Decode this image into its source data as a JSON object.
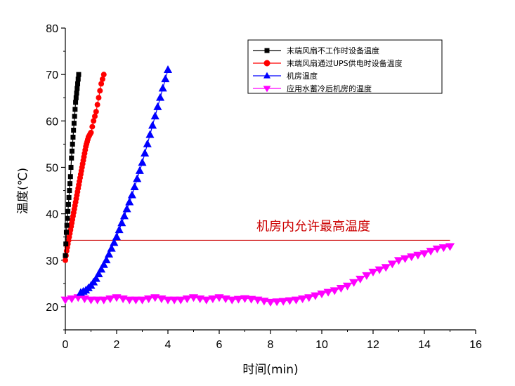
{
  "chart_data": {
    "type": "scatter",
    "xlabel": "时间(min)",
    "ylabel": "温度(℃)",
    "xlim": [
      0,
      16
    ],
    "ylim": [
      15,
      80
    ],
    "xticks": [
      0,
      2,
      4,
      6,
      8,
      10,
      12,
      14,
      16
    ],
    "yticks": [
      20,
      30,
      40,
      50,
      60,
      70,
      80
    ],
    "legend_position": "top-right",
    "series": [
      {
        "name": "末端风扇不工作时设备温度",
        "color": "#000000",
        "marker": "square",
        "x": [
          0.0,
          0.04,
          0.08,
          0.12,
          0.16,
          0.2,
          0.24,
          0.28,
          0.32,
          0.36,
          0.4,
          0.44,
          0.48,
          0.52
        ],
        "y": [
          31,
          36,
          39,
          42,
          45,
          48,
          52,
          55,
          58,
          61,
          64,
          66,
          68,
          70
        ]
      },
      {
        "name": "末端风扇通过UPS供电时设备温度",
        "color": "#ff0000",
        "marker": "circle",
        "x": [
          0.0,
          0.05,
          0.1,
          0.15,
          0.2,
          0.25,
          0.3,
          0.35,
          0.4,
          0.45,
          0.5,
          0.55,
          0.6,
          0.65,
          0.7,
          0.75,
          0.8,
          0.85,
          0.9,
          0.95,
          1.0,
          1.1,
          1.2,
          1.3,
          1.4,
          1.5
        ],
        "y": [
          30,
          32,
          33.5,
          35,
          36.5,
          38,
          39.5,
          41,
          42.5,
          44,
          45.5,
          47,
          48.5,
          50,
          51.5,
          53,
          54.5,
          55.5,
          56.5,
          57,
          57.5,
          60,
          62,
          65,
          68,
          70
        ]
      },
      {
        "name": "机房温度",
        "color": "#0000ff",
        "marker": "triangle-up",
        "x": [
          0.6,
          0.8,
          1.0,
          1.2,
          1.4,
          1.6,
          1.8,
          2.0,
          2.2,
          2.4,
          2.6,
          2.8,
          3.0,
          3.2,
          3.4,
          3.6,
          3.8,
          4.0
        ],
        "y": [
          23,
          23.5,
          24.5,
          26,
          28,
          30,
          32.5,
          35,
          38,
          41,
          44,
          47.5,
          51,
          55,
          59,
          63,
          67,
          71
        ]
      },
      {
        "name": "应用水蓄冷后机房的温度",
        "color": "#ff00ff",
        "marker": "triangle-down",
        "x": [
          0.0,
          0.5,
          1.0,
          1.5,
          2.0,
          2.5,
          3.0,
          3.5,
          4.0,
          4.5,
          5.0,
          5.5,
          6.0,
          6.5,
          7.0,
          7.5,
          8.0,
          8.5,
          9.0,
          9.5,
          10.0,
          10.5,
          11.0,
          11.5,
          12.0,
          12.5,
          13.0,
          13.5,
          14.0,
          14.5,
          15.0
        ],
        "y": [
          21.5,
          22,
          21.5,
          21.5,
          22,
          21.5,
          21.5,
          22,
          21.5,
          21.5,
          22,
          21.5,
          22,
          21.5,
          21.8,
          21.5,
          21,
          21.2,
          21.5,
          22,
          22.8,
          23.5,
          24.5,
          26,
          27.5,
          28.5,
          30,
          30.8,
          31.5,
          32.5,
          33
        ]
      }
    ],
    "annotations": [
      {
        "text": "机房内允许最高温度",
        "y": 34.3,
        "x_range": [
          0,
          15
        ],
        "color": "#cc0000"
      }
    ]
  }
}
